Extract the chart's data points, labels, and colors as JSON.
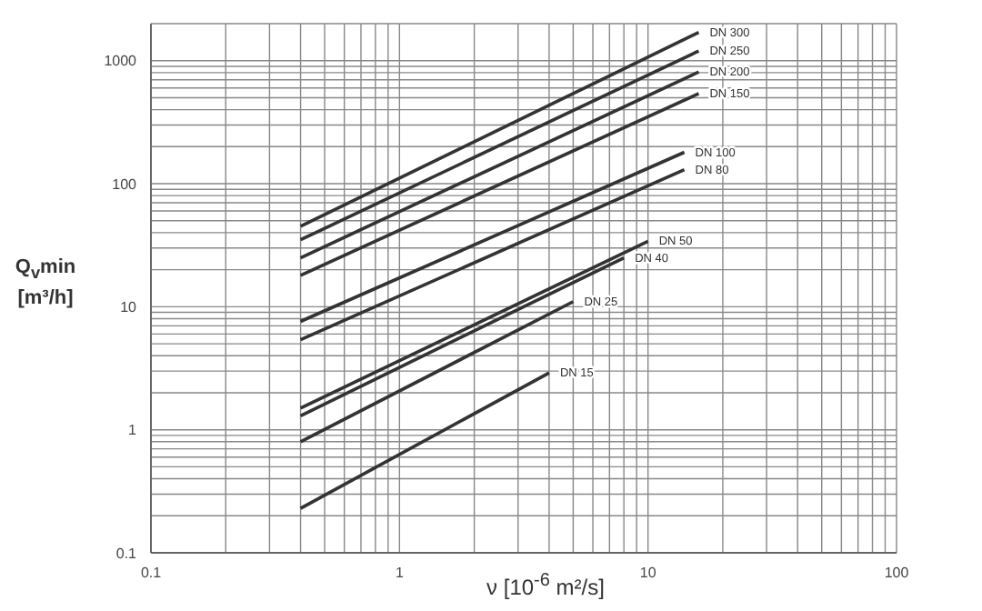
{
  "chart_data": {
    "type": "line",
    "xlabel": "ν [10$^{-6}$ m²/s]",
    "ylabel": "Q$_{v}$min [m³/h]",
    "log": "xy",
    "grid": true,
    "marker": "none",
    "line_style": "solid",
    "xlim": [
      0.1,
      100
    ],
    "ylim": [
      0.1,
      2000
    ],
    "xticks": [
      0.1,
      {
        "value": 0.2,
        "label": null
      },
      {
        "value": 0.3,
        "label": null
      },
      {
        "value": 0.4,
        "label": null
      },
      {
        "value": 0.5,
        "label": null
      },
      {
        "value": 0.6,
        "label": null
      },
      {
        "value": 0.7,
        "label": null
      },
      {
        "value": 0.8,
        "label": null
      },
      {
        "value": 0.9,
        "label": null
      },
      1,
      {
        "value": 2,
        "label": null
      },
      {
        "value": 3,
        "label": null
      },
      {
        "value": 4,
        "label": null
      },
      {
        "value": 5,
        "label": null
      },
      {
        "value": 6,
        "label": null
      },
      {
        "value": 7,
        "label": null
      },
      {
        "value": 8,
        "label": null
      },
      {
        "value": 9,
        "label": null
      },
      10,
      {
        "value": 20,
        "label": null
      },
      {
        "value": 30,
        "label": null
      },
      {
        "value": 40,
        "label": null
      },
      {
        "value": 50,
        "label": null
      },
      {
        "value": 60,
        "label": null
      },
      {
        "value": 70,
        "label": null
      },
      {
        "value": 80,
        "label": null
      },
      {
        "value": 90,
        "label": null
      },
      100
    ],
    "yticks": [
      0.1,
      {
        "value": 0.2,
        "label": null
      },
      {
        "value": 0.3,
        "label": null
      },
      {
        "value": 0.4,
        "label": null
      },
      {
        "value": 0.5,
        "label": null
      },
      {
        "value": 0.6,
        "label": null
      },
      {
        "value": 0.7,
        "label": null
      },
      {
        "value": 0.8,
        "label": null
      },
      {
        "value": 0.9,
        "label": null
      },
      1,
      {
        "value": 2,
        "label": null
      },
      {
        "value": 3,
        "label": null
      },
      {
        "value": 4,
        "label": null
      },
      {
        "value": 5,
        "label": null
      },
      {
        "value": 6,
        "label": null
      },
      {
        "value": 7,
        "label": null
      },
      {
        "value": 8,
        "label": null
      },
      {
        "value": 9,
        "label": null
      },
      10,
      {
        "value": 20,
        "label": null
      },
      {
        "value": 30,
        "label": null
      },
      {
        "value": 40,
        "label": null
      },
      {
        "value": 50,
        "label": null
      },
      {
        "value": 60,
        "label": null
      },
      {
        "value": 70,
        "label": null
      },
      {
        "value": 80,
        "label": null
      },
      {
        "value": 90,
        "label": null
      },
      100,
      {
        "value": 200,
        "label": null
      },
      {
        "value": 300,
        "label": null
      },
      {
        "value": 400,
        "label": null
      },
      {
        "value": 500,
        "label": null
      },
      {
        "value": 600,
        "label": null
      },
      {
        "value": 700,
        "label": null
      },
      {
        "value": 800,
        "label": null
      },
      {
        "value": 900,
        "label": null
      },
      1000,
      {
        "value": 2000,
        "label": null
      }
    ],
    "series": [
      {
        "name": "DN 300",
        "color": "#333333",
        "x": [
          0.4,
          16
        ],
        "values": [
          45,
          1700
        ]
      },
      {
        "name": "DN 250",
        "color": "#333333",
        "x": [
          0.4,
          16
        ],
        "values": [
          35,
          1200
        ]
      },
      {
        "name": "DN 200",
        "color": "#333333",
        "x": [
          0.4,
          16
        ],
        "values": [
          25,
          810
        ]
      },
      {
        "name": "DN 150",
        "color": "#333333",
        "x": [
          0.4,
          16
        ],
        "values": [
          18,
          540
        ]
      },
      {
        "name": "DN 100",
        "color": "#333333",
        "x": [
          0.4,
          14
        ],
        "values": [
          7.6,
          180
        ]
      },
      {
        "name": "DN 80",
        "color": "#333333",
        "x": [
          0.4,
          14
        ],
        "values": [
          5.4,
          130
        ]
      },
      {
        "name": "DN 50",
        "color": "#333333",
        "x": [
          0.4,
          10
        ],
        "values": [
          1.5,
          34
        ]
      },
      {
        "name": "DN 40",
        "color": "#333333",
        "x": [
          0.4,
          8
        ],
        "values": [
          1.3,
          25
        ]
      },
      {
        "name": "DN 25",
        "color": "#333333",
        "x": [
          0.4,
          5
        ],
        "values": [
          0.8,
          11
        ]
      },
      {
        "name": "DN 15",
        "color": "#333333",
        "x": [
          0.4,
          4
        ],
        "values": [
          0.23,
          2.9
        ]
      }
    ]
  }
}
